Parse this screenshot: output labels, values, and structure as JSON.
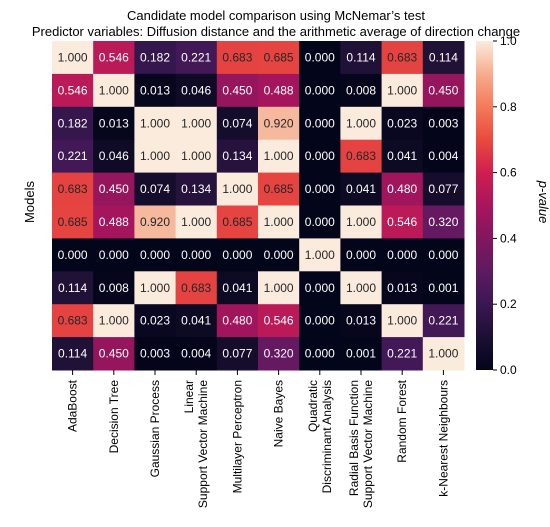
{
  "chart_data": {
    "type": "heatmap",
    "title": "Candidate model comparison using McNemar’s test",
    "subtitle": "Predictor variables: Diffusion distance and the arithmetic average of direction change",
    "ylabel": "Models",
    "xlabel": "",
    "x_categories": [
      [
        "AdaBoost"
      ],
      [
        "Decision Tree"
      ],
      [
        "Gaussian Process"
      ],
      [
        "Linear",
        "Support Vector Machine"
      ],
      [
        "Multilayer Perceptron"
      ],
      [
        "Naive Bayes"
      ],
      [
        "Quadratic",
        "Discriminant Analysis"
      ],
      [
        "Radial Basis Function",
        "Support Vector Machine"
      ],
      [
        "Random Forest"
      ],
      [
        "k-Nearest Neighbours"
      ]
    ],
    "y_categories": [
      "",
      "",
      "",
      "",
      "",
      "",
      "",
      "",
      "",
      ""
    ],
    "values": [
      [
        1.0,
        0.546,
        0.182,
        0.221,
        0.683,
        0.685,
        0.0,
        0.114,
        0.683,
        0.114
      ],
      [
        0.546,
        1.0,
        0.013,
        0.046,
        0.45,
        0.488,
        0.0,
        0.008,
        1.0,
        0.45
      ],
      [
        0.182,
        0.013,
        1.0,
        1.0,
        0.074,
        0.92,
        0.0,
        1.0,
        0.023,
        0.003
      ],
      [
        0.221,
        0.046,
        1.0,
        1.0,
        0.134,
        1.0,
        0.0,
        0.683,
        0.041,
        0.004
      ],
      [
        0.683,
        0.45,
        0.074,
        0.134,
        1.0,
        0.685,
        0.0,
        0.041,
        0.48,
        0.077
      ],
      [
        0.685,
        0.488,
        0.92,
        1.0,
        0.685,
        1.0,
        0.0,
        1.0,
        0.546,
        0.32
      ],
      [
        0.0,
        0.0,
        0.0,
        0.0,
        0.0,
        0.0,
        1.0,
        0.0,
        0.0,
        0.0
      ],
      [
        0.114,
        0.008,
        1.0,
        0.683,
        0.041,
        1.0,
        0.0,
        1.0,
        0.013,
        0.001
      ],
      [
        0.683,
        1.0,
        0.023,
        0.041,
        0.48,
        0.546,
        0.0,
        0.013,
        1.0,
        0.221
      ],
      [
        0.114,
        0.45,
        0.003,
        0.004,
        0.077,
        0.32,
        0.0,
        0.001,
        0.221,
        1.0
      ]
    ],
    "value_format_decimals": 3,
    "colorbar": {
      "label": "p-value",
      "range": [
        0.0,
        1.0
      ],
      "ticks": [
        "0.0",
        "0.2",
        "0.4",
        "0.6",
        "0.8",
        "1.0"
      ],
      "colormap": "rocket"
    },
    "grid": false,
    "legend_placement": "right"
  }
}
